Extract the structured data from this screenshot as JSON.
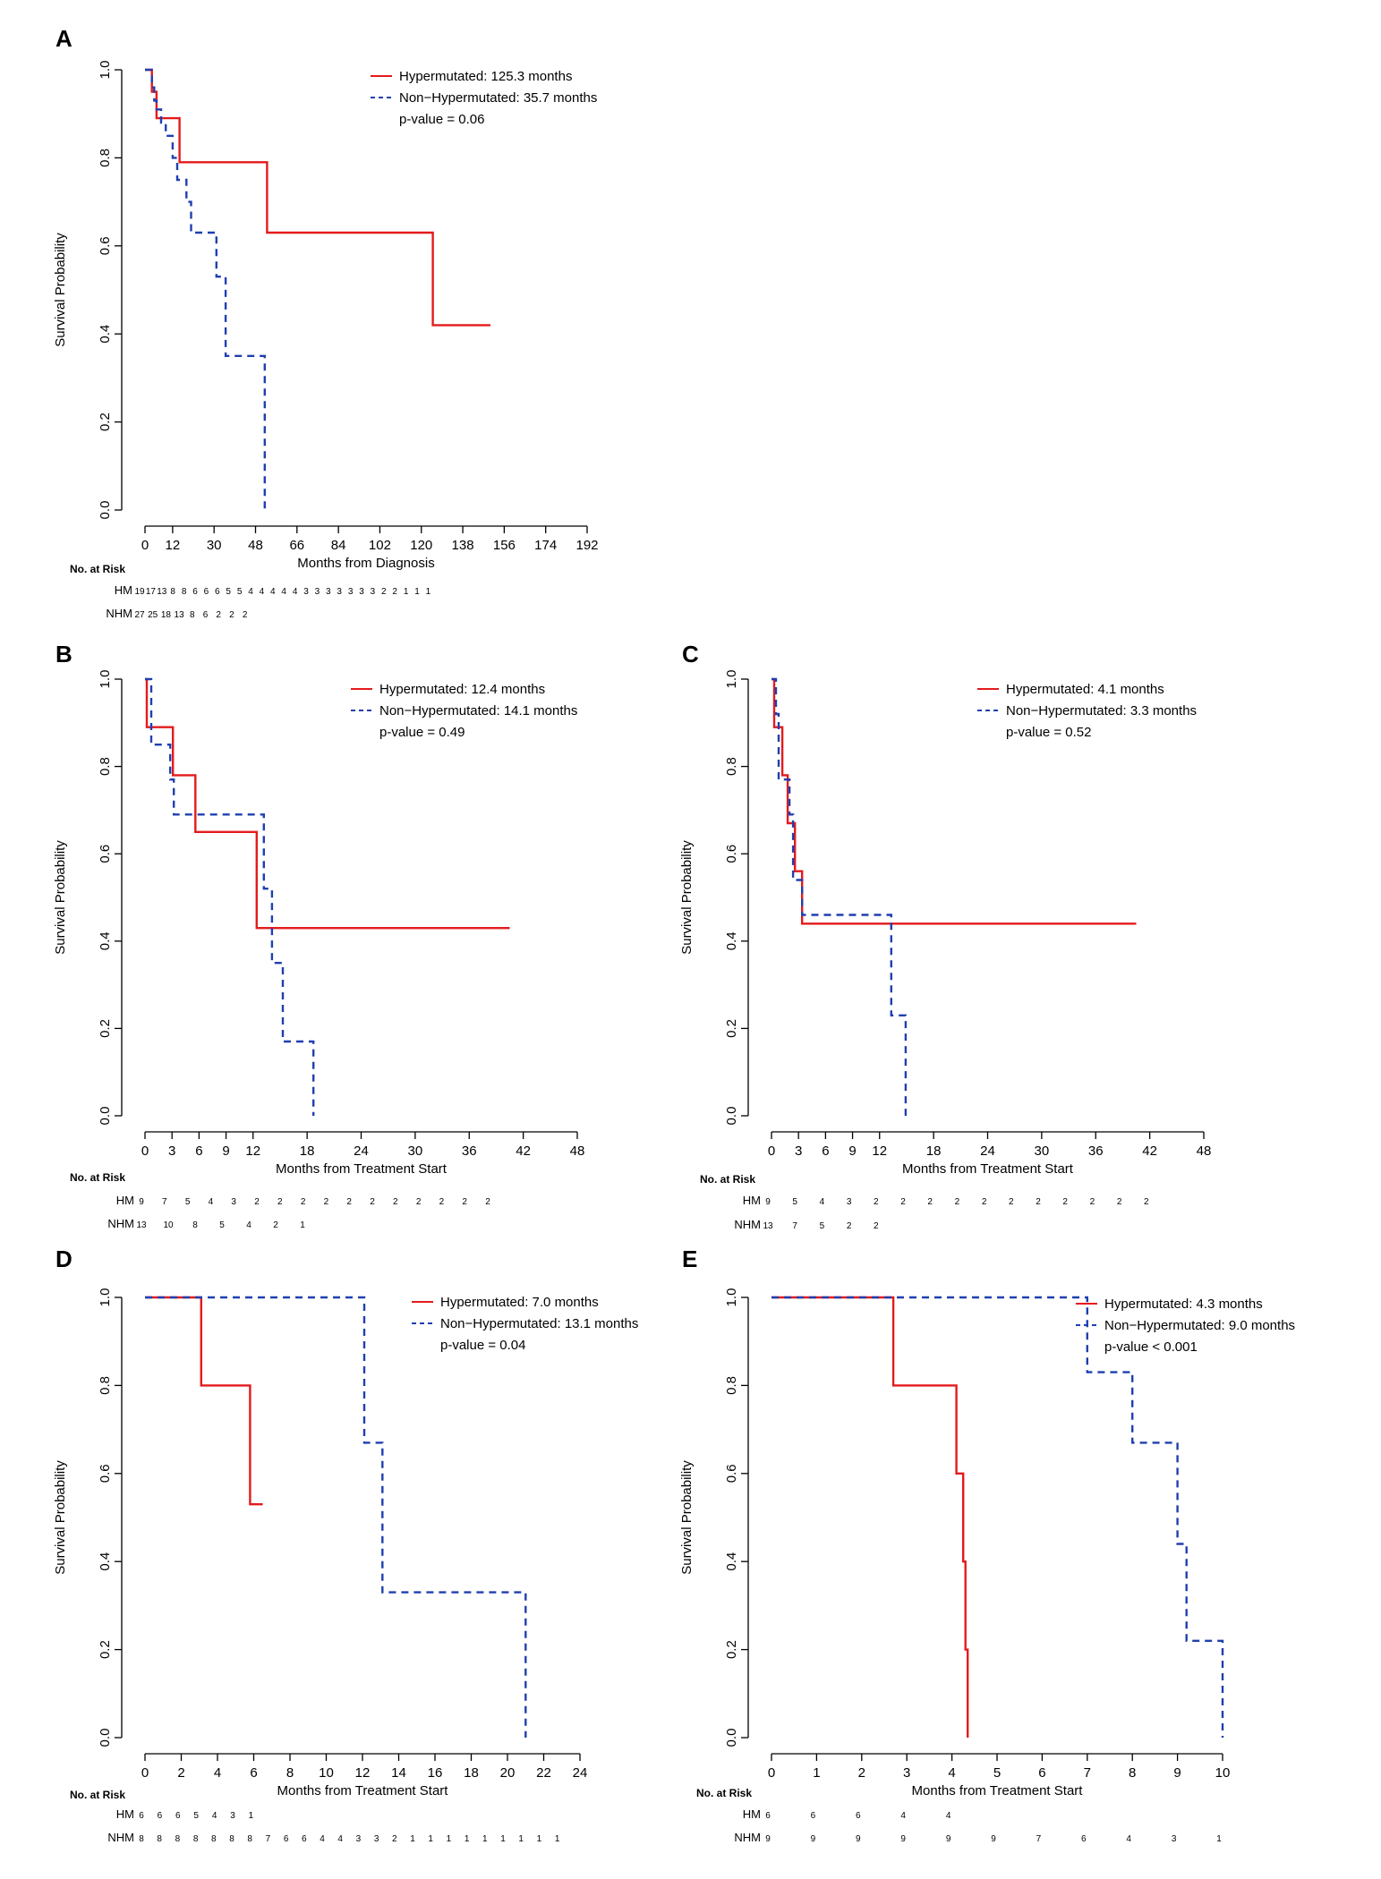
{
  "colors": {
    "hm": "#e41a1c",
    "nhm": "#1f3fb0"
  },
  "chart_data": [
    {
      "type": "line",
      "subtype": "kaplan-meier",
      "panel": "A",
      "xlabel": "Months from Diagnosis",
      "ylabel": "Survival Probability",
      "xlim": [
        0,
        192
      ],
      "xticks": [
        0,
        12,
        30,
        48,
        66,
        84,
        102,
        120,
        138,
        156,
        174,
        192
      ],
      "ylim": [
        0,
        1
      ],
      "yticks": [
        "0.0",
        "0.2",
        "0.4",
        "0.6",
        "0.8",
        "1.0"
      ],
      "legend": [
        "Hypermutated: 125.3 months",
        "Non−Hypermutated: 35.7 months",
        "p-value = 0.06"
      ],
      "series": [
        {
          "name": "HM",
          "style": "solid",
          "x": [
            0,
            3,
            3,
            5,
            5,
            7,
            7,
            15,
            15,
            53,
            53,
            125,
            125,
            150
          ],
          "y": [
            1.0,
            1.0,
            0.95,
            0.95,
            0.89,
            0.89,
            0.89,
            0.89,
            0.79,
            0.79,
            0.63,
            0.63,
            0.42,
            0.42
          ]
        },
        {
          "name": "NHM",
          "style": "dashed",
          "x": [
            0,
            3,
            3,
            4,
            4,
            5,
            5,
            7,
            7,
            9,
            9,
            12,
            12,
            14,
            14,
            18,
            18,
            20,
            20,
            31,
            31,
            35,
            35,
            52,
            52
          ],
          "y": [
            1.0,
            1.0,
            0.96,
            0.96,
            0.93,
            0.93,
            0.91,
            0.91,
            0.88,
            0.88,
            0.85,
            0.85,
            0.8,
            0.8,
            0.75,
            0.75,
            0.7,
            0.7,
            0.63,
            0.63,
            0.53,
            0.53,
            0.35,
            0.35,
            0.0
          ]
        }
      ],
      "risk": {
        "title": "No. at Risk",
        "rows": [
          {
            "label": "HM",
            "values": [
              "19",
              "17",
              "13",
              "8",
              "8",
              "6",
              "6",
              "6",
              "5",
              "5",
              "4",
              "4",
              "4",
              "4",
              "4",
              "3",
              "3",
              "3",
              "3",
              "3",
              "3",
              "3",
              "2",
              "2",
              "1",
              "1",
              "1"
            ]
          },
          {
            "label": "NHM",
            "values": [
              "27",
              "25",
              "18",
              "13",
              "8",
              "6",
              "2",
              "2",
              "2"
            ]
          }
        ]
      }
    },
    {
      "type": "line",
      "subtype": "kaplan-meier",
      "panel": "B",
      "xlabel": "Months from Treatment Start",
      "ylabel": "Survival Probability",
      "xlim": [
        0,
        48
      ],
      "xticks": [
        0,
        3,
        6,
        9,
        12,
        18,
        24,
        30,
        36,
        42,
        48
      ],
      "ylim": [
        0,
        1
      ],
      "yticks": [
        "0.0",
        "0.2",
        "0.4",
        "0.6",
        "0.8",
        "1.0"
      ],
      "legend": [
        "Hypermutated: 12.4 months",
        "Non−Hypermutated: 14.1 months",
        "p-value = 0.49"
      ],
      "series": [
        {
          "name": "HM",
          "style": "solid",
          "x": [
            0,
            0.2,
            0.2,
            3.1,
            3.1,
            5.6,
            5.6,
            12.4,
            12.4,
            40.5
          ],
          "y": [
            1.0,
            1.0,
            0.89,
            0.89,
            0.78,
            0.78,
            0.65,
            0.65,
            0.43,
            0.43
          ]
        },
        {
          "name": "NHM",
          "style": "dashed",
          "x": [
            0,
            0.7,
            0.7,
            2.8,
            2.8,
            3.2,
            3.2,
            13.2,
            13.2,
            14.1,
            14.1,
            15.3,
            15.3,
            18.7,
            18.7
          ],
          "y": [
            1.0,
            1.0,
            0.85,
            0.85,
            0.77,
            0.77,
            0.69,
            0.69,
            0.52,
            0.52,
            0.35,
            0.35,
            0.17,
            0.17,
            0.0
          ]
        }
      ],
      "risk": {
        "title": "No. at Risk",
        "rows": [
          {
            "label": "HM",
            "values": [
              "9",
              "7",
              "5",
              "4",
              "3",
              "2",
              "2",
              "2",
              "2",
              "2",
              "2",
              "2",
              "2",
              "2",
              "2",
              "2"
            ]
          },
          {
            "label": "NHM",
            "values": [
              "13",
              "10",
              "8",
              "5",
              "4",
              "2",
              "1"
            ]
          }
        ]
      }
    },
    {
      "type": "line",
      "subtype": "kaplan-meier",
      "panel": "C",
      "xlabel": "Months from Treatment Start",
      "ylabel": "Survival Probability",
      "xlim": [
        0,
        48
      ],
      "xticks": [
        0,
        3,
        6,
        9,
        12,
        18,
        24,
        30,
        36,
        42,
        48
      ],
      "ylim": [
        0,
        1
      ],
      "yticks": [
        "0.0",
        "0.2",
        "0.4",
        "0.6",
        "0.8",
        "1.0"
      ],
      "legend": [
        "Hypermutated: 4.1 months",
        "Non−Hypermutated: 3.3 months",
        "p-value = 0.52"
      ],
      "series": [
        {
          "name": "HM",
          "style": "solid",
          "x": [
            0,
            0.3,
            0.3,
            1.2,
            1.2,
            1.8,
            1.8,
            2.6,
            2.6,
            3.4,
            3.4,
            4.1,
            4.1,
            40.5
          ],
          "y": [
            1.0,
            1.0,
            0.89,
            0.89,
            0.78,
            0.78,
            0.67,
            0.67,
            0.56,
            0.56,
            0.44,
            0.44,
            0.44,
            0.44
          ]
        },
        {
          "name": "NHM",
          "style": "dashed",
          "x": [
            0,
            0.5,
            0.5,
            0.8,
            0.8,
            2.0,
            2.0,
            2.4,
            2.4,
            3.4,
            3.4,
            4.0,
            4.0,
            13.3,
            13.3,
            14.9,
            14.9
          ],
          "y": [
            1.0,
            1.0,
            0.92,
            0.92,
            0.77,
            0.77,
            0.69,
            0.69,
            0.54,
            0.54,
            0.46,
            0.46,
            0.46,
            0.46,
            0.23,
            0.23,
            0.0
          ]
        }
      ],
      "risk": {
        "title": "No. at Risk",
        "rows": [
          {
            "label": "HM",
            "values": [
              "9",
              "5",
              "4",
              "3",
              "2",
              "2",
              "2",
              "2",
              "2",
              "2",
              "2",
              "2",
              "2",
              "2",
              "2"
            ]
          },
          {
            "label": "NHM",
            "values": [
              "13",
              "7",
              "5",
              "2",
              "2"
            ]
          }
        ]
      }
    },
    {
      "type": "line",
      "subtype": "kaplan-meier",
      "panel": "D",
      "xlabel": "Months from Treatment Start",
      "ylabel": "Survival Probability",
      "xlim": [
        0,
        24
      ],
      "xticks": [
        0,
        2,
        4,
        6,
        8,
        10,
        12,
        14,
        16,
        18,
        20,
        22,
        24
      ],
      "ylim": [
        0,
        1
      ],
      "yticks": [
        "0.0",
        "0.2",
        "0.4",
        "0.6",
        "0.8",
        "1.0"
      ],
      "legend": [
        "Hypermutated: 7.0 months",
        "Non−Hypermutated: 13.1 months",
        "p-value = 0.04"
      ],
      "series": [
        {
          "name": "HM",
          "style": "solid",
          "x": [
            0,
            3.1,
            3.1,
            5.8,
            5.8,
            6.5
          ],
          "y": [
            1.0,
            1.0,
            0.8,
            0.8,
            0.53,
            0.53
          ]
        },
        {
          "name": "NHM",
          "style": "dashed",
          "x": [
            0,
            12.1,
            12.1,
            13.1,
            13.1,
            21.0,
            21.0
          ],
          "y": [
            1.0,
            1.0,
            0.67,
            0.67,
            0.33,
            0.33,
            0.0
          ]
        }
      ],
      "risk": {
        "title": "No. at Risk",
        "rows": [
          {
            "label": "HM",
            "values": [
              "6",
              "6",
              "6",
              "5",
              "4",
              "3",
              "1"
            ]
          },
          {
            "label": "NHM",
            "values": [
              "8",
              "8",
              "8",
              "8",
              "8",
              "8",
              "8",
              "7",
              "6",
              "6",
              "4",
              "4",
              "3",
              "3",
              "2",
              "1",
              "1",
              "1",
              "1",
              "1",
              "1",
              "1",
              "1",
              "1"
            ]
          }
        ]
      }
    },
    {
      "type": "line",
      "subtype": "kaplan-meier",
      "panel": "E",
      "xlabel": "Months from Treatment Start",
      "ylabel": "Survival Probability",
      "xlim": [
        0,
        10
      ],
      "xticks": [
        0,
        1,
        2,
        3,
        4,
        5,
        6,
        7,
        8,
        9,
        10
      ],
      "ylim": [
        0,
        1
      ],
      "yticks": [
        "0.0",
        "0.2",
        "0.4",
        "0.6",
        "0.8",
        "1.0"
      ],
      "legend": [
        "Hypermutated: 4.3 months",
        "Non−Hypermutated: 9.0 months",
        "p-value < 0.001"
      ],
      "series": [
        {
          "name": "HM",
          "style": "solid",
          "x": [
            0,
            2.7,
            2.7,
            4.1,
            4.1,
            4.25,
            4.25,
            4.3,
            4.3,
            4.35,
            4.35
          ],
          "y": [
            1.0,
            1.0,
            0.8,
            0.8,
            0.6,
            0.6,
            0.4,
            0.4,
            0.2,
            0.2,
            0.0
          ]
        },
        {
          "name": "NHM",
          "style": "dashed",
          "x": [
            0,
            7.0,
            7.0,
            8.0,
            8.0,
            9.0,
            9.0,
            9.2,
            9.2,
            10.0,
            10.0
          ],
          "y": [
            1.0,
            1.0,
            0.83,
            0.83,
            0.67,
            0.67,
            0.44,
            0.44,
            0.22,
            0.22,
            0.0
          ]
        }
      ],
      "risk": {
        "title": "No. at Risk",
        "rows": [
          {
            "label": "HM",
            "values": [
              "6",
              "6",
              "6",
              "4",
              "4"
            ]
          },
          {
            "label": "NHM",
            "values": [
              "9",
              "9",
              "9",
              "9",
              "9",
              "9",
              "7",
              "6",
              "4",
              "3",
              "1"
            ]
          }
        ]
      }
    }
  ]
}
